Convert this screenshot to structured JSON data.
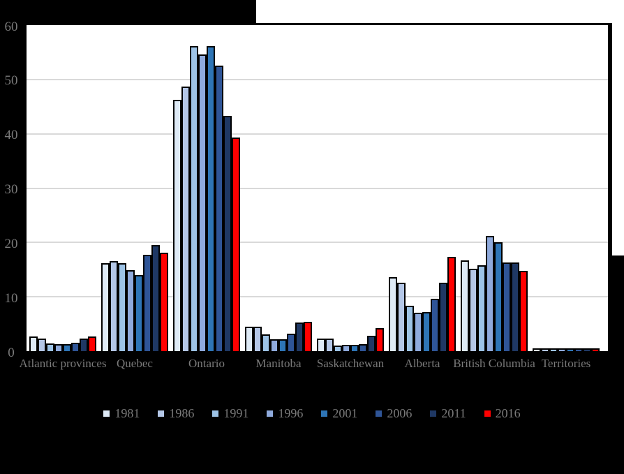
{
  "chart_data": {
    "type": "bar",
    "title": "",
    "categories": [
      "Atlantic provinces",
      "Quebec",
      "Ontario",
      "Manitoba",
      "Saskatchewan",
      "Alberta",
      "British Columbia",
      "Territories"
    ],
    "series": [
      {
        "name": "1981",
        "color": "#DEEAF6",
        "values": [
          2.4,
          15.9,
          46.0,
          4.3,
          2.0,
          13.3,
          16.4,
          0.2
        ]
      },
      {
        "name": "1986",
        "color": "#B4C7E7",
        "values": [
          2.1,
          16.3,
          48.5,
          4.2,
          2.0,
          12.3,
          14.9,
          0.2
        ]
      },
      {
        "name": "1991",
        "color": "#9DC3E6",
        "values": [
          1.2,
          15.9,
          55.9,
          2.8,
          0.8,
          8.1,
          15.6,
          0.2
        ]
      },
      {
        "name": "1996",
        "color": "#8FAADC",
        "values": [
          1.0,
          14.7,
          54.3,
          1.9,
          0.9,
          6.8,
          20.9,
          0.2
        ]
      },
      {
        "name": "2001",
        "color": "#2E75B6",
        "values": [
          1.0,
          13.7,
          55.9,
          1.9,
          0.9,
          7.0,
          19.8,
          0.2
        ]
      },
      {
        "name": "2006",
        "color": "#2F5597",
        "values": [
          1.3,
          17.5,
          52.3,
          2.9,
          1.0,
          9.4,
          16.0,
          0.2
        ]
      },
      {
        "name": "2011",
        "color": "#1F3864",
        "values": [
          2.1,
          19.3,
          43.1,
          5.0,
          2.6,
          12.4,
          16.0,
          0.2
        ]
      },
      {
        "name": "2016",
        "color": "#FF0000",
        "values": [
          2.4,
          17.8,
          39.0,
          5.2,
          4.0,
          17.1,
          14.5,
          0.2
        ]
      }
    ],
    "ylim": [
      0,
      60
    ],
    "yticks": [
      0,
      10,
      20,
      30,
      40,
      50,
      60
    ],
    "grid": true,
    "legend_position": "bottom",
    "plot_background": "#FFFFFF",
    "page_background": "#000000",
    "gridline_color": "#D9D9D9",
    "bar_outline_color": "#000000",
    "axis_text_color": "#7A7A7A"
  }
}
